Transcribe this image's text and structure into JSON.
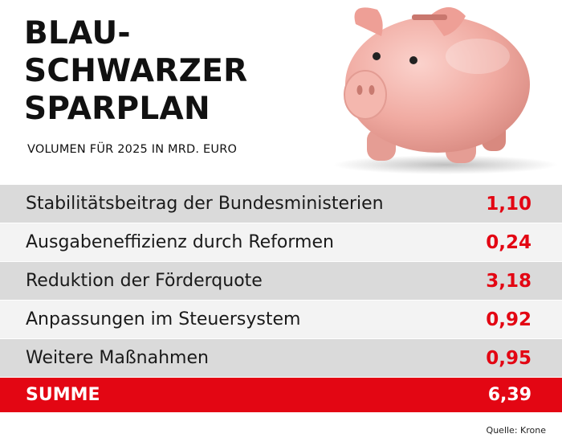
{
  "title_lines": [
    "BLAU-",
    "SCHWARZER",
    "SPARPLAN"
  ],
  "subtitle": "VOLUMEN FÜR 2025 IN MRD. EURO",
  "rows": [
    {
      "label": "Stabilitätsbeitrag der Bundesministerien",
      "value": "1,10"
    },
    {
      "label": "Ausgabeneffizienz durch Reformen",
      "value": "0,24"
    },
    {
      "label": "Reduktion der Förderquote",
      "value": "3,18"
    },
    {
      "label": "Anpassungen im Steuersystem",
      "value": "0,92"
    },
    {
      "label": "Weitere Maßnahmen",
      "value": "0,95"
    }
  ],
  "total": {
    "label": "SUMME",
    "value": "6,39"
  },
  "source": "Quelle: Krone",
  "colors": {
    "accent": "#e30613",
    "row_dark": "#dadada",
    "row_light": "#f3f3f3",
    "pig": "#f2b2aa"
  },
  "icons": {
    "illustration": "piggy-bank-icon"
  }
}
